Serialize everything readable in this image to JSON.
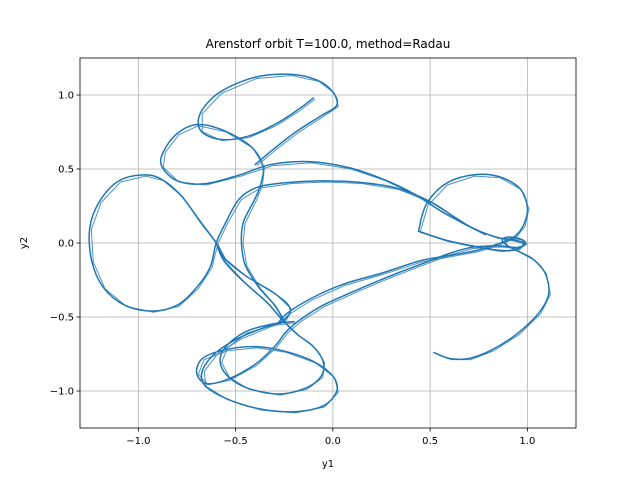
{
  "chart_data": {
    "type": "line",
    "title": "Arenstorf orbit T=100.0, method=Radau",
    "xlabel": "y1",
    "ylabel": "y2",
    "xlim": [
      -1.3,
      1.25
    ],
    "ylim": [
      -1.25,
      1.25
    ],
    "grid": true,
    "xticks": [
      -1.0,
      -0.5,
      0.0,
      0.5,
      1.0
    ],
    "xtick_labels": [
      "−1.0",
      "−0.5",
      "0.0",
      "0.5",
      "1.0"
    ],
    "yticks": [
      -1.0,
      -0.5,
      0.0,
      0.5,
      1.0
    ],
    "ytick_labels": [
      "−1.0",
      "−0.5",
      "0.0",
      "0.5",
      "1.0"
    ],
    "series_color": "#1f77b4",
    "series": [
      {
        "name": "",
        "trajectory_segments": [
          {
            "points": [
              [
                0.52,
                -0.74
              ],
              [
                0.6,
                -0.78
              ],
              [
                0.7,
                -0.78
              ],
              [
                0.82,
                -0.72
              ],
              [
                0.95,
                -0.61
              ],
              [
                1.06,
                -0.47
              ],
              [
                1.11,
                -0.34
              ],
              [
                1.09,
                -0.2
              ],
              [
                1.03,
                -0.11
              ],
              [
                0.96,
                -0.06
              ],
              [
                0.9,
                -0.02
              ],
              [
                0.87,
                0.02
              ],
              [
                0.9,
                0.04
              ],
              [
                0.96,
                0.03
              ],
              [
                0.99,
                0.0
              ],
              [
                0.95,
                -0.03
              ],
              [
                0.87,
                -0.02
              ],
              [
                0.8,
                -0.02
              ],
              [
                0.71,
                -0.03
              ],
              [
                0.6,
                -0.07
              ],
              [
                0.46,
                -0.14
              ],
              [
                0.3,
                -0.22
              ],
              [
                0.12,
                -0.32
              ],
              [
                -0.05,
                -0.42
              ],
              [
                -0.17,
                -0.52
              ],
              [
                -0.24,
                -0.6
              ],
              [
                -0.3,
                -0.7
              ],
              [
                -0.4,
                -0.82
              ],
              [
                -0.54,
                -0.92
              ],
              [
                -0.65,
                -0.95
              ],
              [
                -0.7,
                -0.88
              ],
              [
                -0.67,
                -0.78
              ],
              [
                -0.55,
                -0.72
              ],
              [
                -0.4,
                -0.7
              ],
              [
                -0.25,
                -0.73
              ],
              [
                -0.1,
                -0.8
              ],
              [
                0.0,
                -0.9
              ],
              [
                0.02,
                -1.0
              ],
              [
                -0.05,
                -1.1
              ],
              [
                -0.2,
                -1.14
              ],
              [
                -0.38,
                -1.12
              ],
              [
                -0.55,
                -1.05
              ],
              [
                -0.66,
                -0.96
              ],
              [
                -0.67,
                -0.86
              ],
              [
                -0.6,
                -0.74
              ],
              [
                -0.48,
                -0.64
              ],
              [
                -0.33,
                -0.56
              ],
              [
                -0.25,
                -0.52
              ],
              [
                -0.22,
                -0.44
              ],
              [
                -0.3,
                -0.34
              ],
              [
                -0.45,
                -0.22
              ],
              [
                -0.56,
                -0.1
              ],
              [
                -0.6,
                0.0
              ],
              [
                -0.68,
                0.14
              ],
              [
                -0.78,
                0.32
              ],
              [
                -0.88,
                0.43
              ],
              [
                -0.97,
                0.46
              ],
              [
                -1.1,
                0.42
              ],
              [
                -1.2,
                0.28
              ],
              [
                -1.25,
                0.1
              ],
              [
                -1.24,
                -0.12
              ],
              [
                -1.18,
                -0.3
              ],
              [
                -1.07,
                -0.42
              ],
              [
                -0.93,
                -0.46
              ],
              [
                -0.8,
                -0.42
              ],
              [
                -0.7,
                -0.3
              ],
              [
                -0.63,
                -0.16
              ],
              [
                -0.6,
                0.0
              ],
              [
                -0.55,
                0.14
              ],
              [
                -0.48,
                0.3
              ],
              [
                -0.38,
                0.38
              ],
              [
                -0.22,
                0.41
              ],
              [
                -0.05,
                0.42
              ],
              [
                0.14,
                0.41
              ],
              [
                0.33,
                0.37
              ],
              [
                0.5,
                0.28
              ],
              [
                0.62,
                0.18
              ],
              [
                0.72,
                0.1
              ],
              [
                0.84,
                0.04
              ],
              [
                0.93,
                0.02
              ],
              [
                0.98,
                0.0
              ],
              [
                0.95,
                -0.04
              ],
              [
                0.86,
                -0.05
              ],
              [
                0.72,
                -0.02
              ],
              [
                0.58,
                0.02
              ],
              [
                0.44,
                0.08
              ]
            ]
          },
          {
            "points": [
              [
                0.44,
                0.08
              ],
              [
                0.48,
                0.26
              ],
              [
                0.58,
                0.4
              ],
              [
                0.72,
                0.46
              ],
              [
                0.85,
                0.45
              ],
              [
                0.96,
                0.37
              ],
              [
                1.0,
                0.24
              ],
              [
                0.98,
                0.12
              ],
              [
                0.93,
                0.04
              ],
              [
                0.84,
                -0.01
              ],
              [
                0.74,
                -0.05
              ],
              [
                0.62,
                -0.08
              ],
              [
                0.45,
                -0.12
              ],
              [
                0.26,
                -0.2
              ],
              [
                0.05,
                -0.28
              ],
              [
                -0.12,
                -0.38
              ],
              [
                -0.24,
                -0.48
              ],
              [
                -0.28,
                -0.54
              ]
            ]
          },
          {
            "points": [
              [
                -0.25,
                -0.53
              ],
              [
                -0.3,
                -0.42
              ],
              [
                -0.38,
                -0.3
              ],
              [
                -0.45,
                -0.15
              ],
              [
                -0.47,
                0.0
              ],
              [
                -0.46,
                0.14
              ],
              [
                -0.4,
                0.3
              ],
              [
                -0.37,
                0.4
              ],
              [
                -0.36,
                0.52
              ],
              [
                -0.42,
                0.65
              ],
              [
                -0.56,
                0.76
              ],
              [
                -0.7,
                0.8
              ],
              [
                -0.8,
                0.74
              ],
              [
                -0.87,
                0.62
              ],
              [
                -0.88,
                0.52
              ],
              [
                -0.8,
                0.42
              ],
              [
                -0.66,
                0.4
              ],
              [
                -0.48,
                0.46
              ],
              [
                -0.32,
                0.53
              ],
              [
                -0.12,
                0.55
              ],
              [
                0.08,
                0.51
              ],
              [
                0.26,
                0.43
              ],
              [
                0.42,
                0.33
              ],
              [
                0.55,
                0.22
              ],
              [
                0.66,
                0.14
              ],
              [
                0.78,
                0.06
              ]
            ]
          },
          {
            "points": [
              [
                -0.4,
                0.53
              ],
              [
                -0.3,
                0.64
              ],
              [
                -0.18,
                0.76
              ],
              [
                -0.06,
                0.86
              ],
              [
                0.02,
                0.93
              ],
              [
                0.0,
                1.02
              ],
              [
                -0.08,
                1.1
              ],
              [
                -0.22,
                1.14
              ],
              [
                -0.4,
                1.12
              ],
              [
                -0.58,
                1.02
              ],
              [
                -0.68,
                0.88
              ],
              [
                -0.68,
                0.76
              ],
              [
                -0.58,
                0.7
              ],
              [
                -0.44,
                0.72
              ],
              [
                -0.3,
                0.8
              ],
              [
                -0.18,
                0.9
              ],
              [
                -0.1,
                0.98
              ]
            ]
          },
          {
            "points": [
              [
                -0.6,
                0.0
              ],
              [
                -0.56,
                -0.12
              ],
              [
                -0.46,
                -0.26
              ],
              [
                -0.34,
                -0.4
              ],
              [
                -0.26,
                -0.52
              ],
              [
                -0.18,
                -0.62
              ],
              [
                -0.1,
                -0.7
              ],
              [
                -0.05,
                -0.8
              ],
              [
                -0.06,
                -0.9
              ],
              [
                -0.14,
                -0.98
              ],
              [
                -0.28,
                -1.02
              ],
              [
                -0.44,
                -0.98
              ],
              [
                -0.54,
                -0.9
              ],
              [
                -0.58,
                -0.8
              ],
              [
                -0.55,
                -0.7
              ],
              [
                -0.45,
                -0.6
              ],
              [
                -0.32,
                -0.55
              ],
              [
                -0.2,
                -0.53
              ]
            ]
          }
        ]
      }
    ]
  }
}
